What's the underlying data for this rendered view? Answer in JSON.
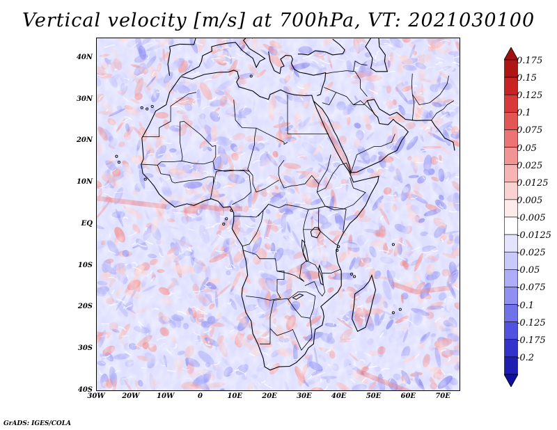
{
  "title": "Vertical velocity [m/s] at 700hPa, VT: 2021030100",
  "credit": "GrADS: IGES/COLA",
  "map": {
    "lon_range": [
      -30,
      75
    ],
    "lat_range": [
      -40,
      45
    ],
    "lat_ticks": [
      {
        "value": 40,
        "label": "40N"
      },
      {
        "value": 30,
        "label": "30N"
      },
      {
        "value": 20,
        "label": "20N"
      },
      {
        "value": 10,
        "label": "10N"
      },
      {
        "value": 0,
        "label": "EQ"
      },
      {
        "value": -10,
        "label": "10S"
      },
      {
        "value": -20,
        "label": "20S"
      },
      {
        "value": -30,
        "label": "30S"
      },
      {
        "value": -40,
        "label": "40S"
      }
    ],
    "lon_ticks": [
      {
        "value": -30,
        "label": "30W"
      },
      {
        "value": -20,
        "label": "20W"
      },
      {
        "value": -10,
        "label": "10W"
      },
      {
        "value": 0,
        "label": "0"
      },
      {
        "value": 10,
        "label": "10E"
      },
      {
        "value": 20,
        "label": "20E"
      },
      {
        "value": 30,
        "label": "30E"
      },
      {
        "value": 40,
        "label": "40E"
      },
      {
        "value": 50,
        "label": "50E"
      },
      {
        "value": 60,
        "label": "60E"
      },
      {
        "value": 70,
        "label": "70E"
      }
    ]
  },
  "colorbar": {
    "levels": [
      {
        "label": "0.175",
        "color": "#b01515"
      },
      {
        "label": "0.15",
        "color": "#c82222"
      },
      {
        "label": "0.125",
        "color": "#d83a3a"
      },
      {
        "label": "0.1",
        "color": "#e45555"
      },
      {
        "label": "0.075",
        "color": "#ec7474"
      },
      {
        "label": "0.05",
        "color": "#f29494"
      },
      {
        "label": "0.025",
        "color": "#f6b4b4"
      },
      {
        "label": "0.0125",
        "color": "#fad2d2"
      },
      {
        "label": "0.005",
        "color": "#fdeaea"
      },
      {
        "label": "-0.005",
        "color": "#ffffff"
      },
      {
        "label": "-0.0125",
        "color": "#e4e4ff"
      },
      {
        "label": "-0.025",
        "color": "#c9c9fc"
      },
      {
        "label": "-0.05",
        "color": "#aeaef8"
      },
      {
        "label": "-0.075",
        "color": "#9090f2"
      },
      {
        "label": "-0.1",
        "color": "#7171ea"
      },
      {
        "label": "-0.125",
        "color": "#5252e0"
      },
      {
        "label": "-0.175",
        "color": "#3333cc"
      },
      {
        "label": "-0.2",
        "color": "#1e1eb0"
      }
    ],
    "top_triangle_color": "#a01010",
    "bottom_triangle_color": "#1010a0",
    "neutral_color": "#ffffff"
  },
  "background_color": "#dfe0ff"
}
